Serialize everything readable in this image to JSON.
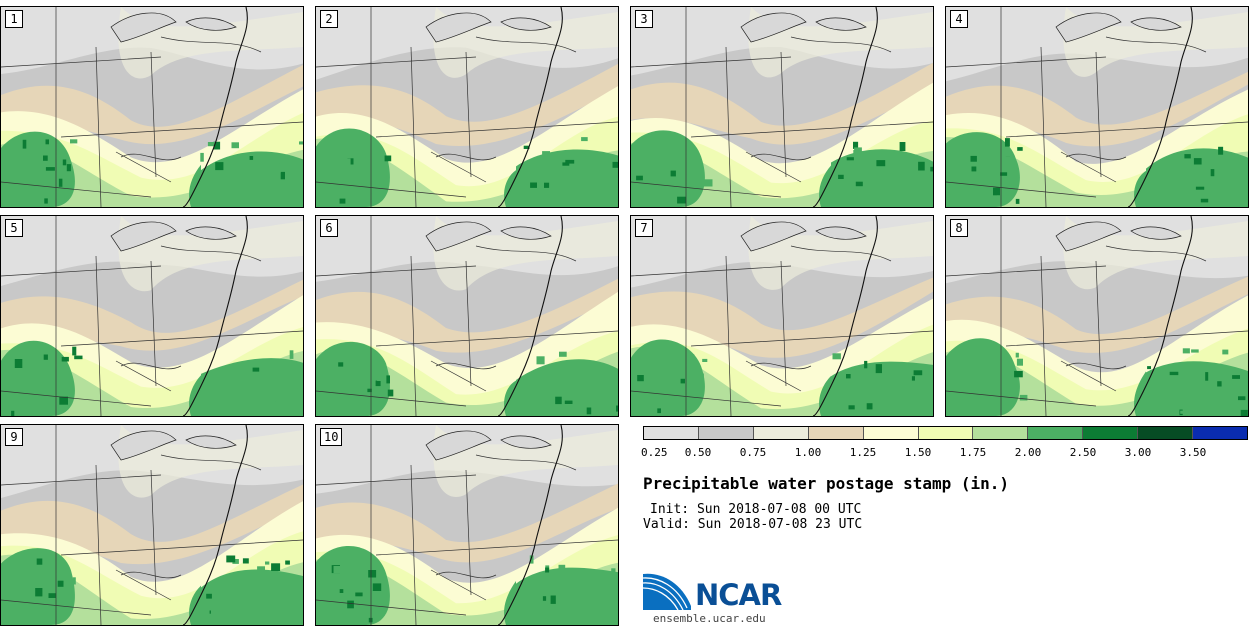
{
  "legend": {
    "colors": [
      "#e0e0e0",
      "#c8c8c8",
      "#ececdc",
      "#e6d6b8",
      "#fcfcd4",
      "#f0fcb4",
      "#b4e09c",
      "#4cb064",
      "#0c7c34",
      "#064c24",
      "#0a2cb0"
    ],
    "tick_labels": [
      "0.25",
      "0.50",
      "0.75",
      "1.00",
      "1.25",
      "1.50",
      "1.75",
      "2.00",
      "2.50",
      "3.00",
      "3.50"
    ]
  },
  "title": "Precipitable water postage stamp (in.)",
  "init": "Init: Sun 2018-07-08 00 UTC",
  "valid": "Valid: Sun 2018-07-08 23 UTC",
  "logo": {
    "word": "NCAR",
    "url": "ensemble.ucar.edu"
  },
  "panels": [
    {
      "label": "1"
    },
    {
      "label": "2"
    },
    {
      "label": "3"
    },
    {
      "label": "4"
    },
    {
      "label": "5"
    },
    {
      "label": "6"
    },
    {
      "label": "7"
    },
    {
      "label": "8"
    },
    {
      "label": "9"
    },
    {
      "label": "10"
    }
  ]
}
